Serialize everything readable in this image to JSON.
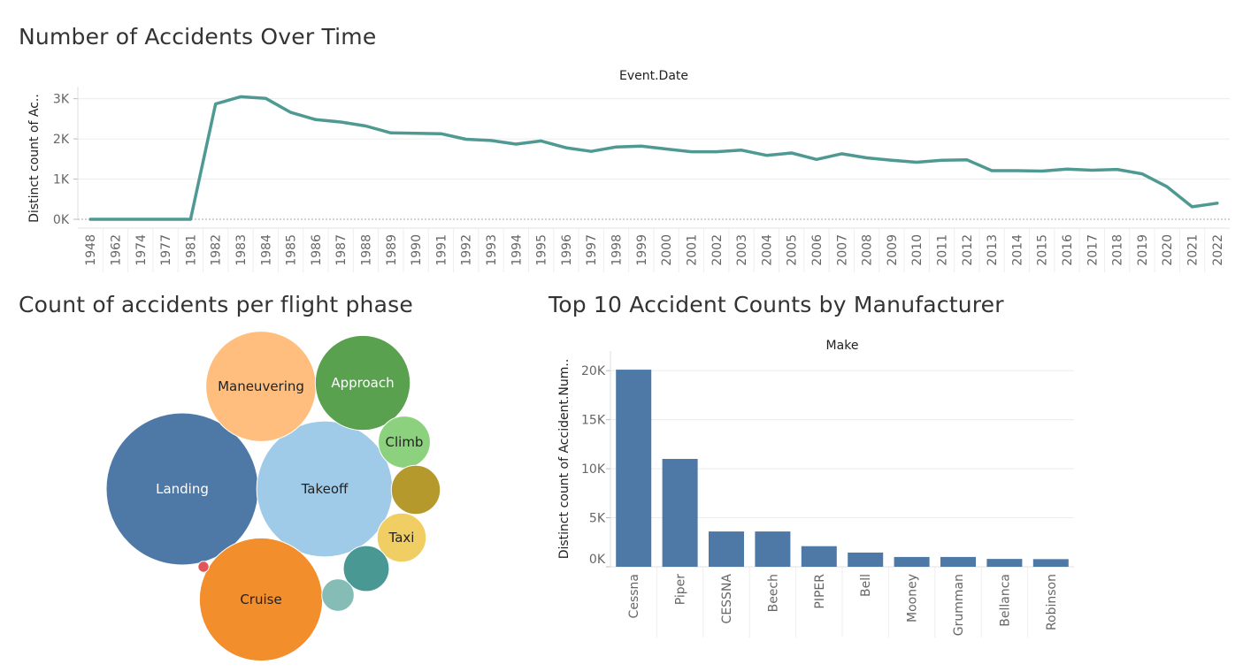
{
  "line_chart": {
    "title": "Number of Accidents Over Time",
    "chart_data": {
      "type": "line",
      "title": "Number of Accidents Over Time",
      "xlabel": "Event.Date",
      "ylabel": "Distinct count of Ac..",
      "ylim": [
        0,
        3300
      ],
      "y_ticks": [
        0,
        1000,
        2000,
        3000
      ],
      "y_tick_labels": [
        "0K",
        "1K",
        "2K",
        "3K"
      ],
      "grid": true,
      "color": "#4e9a93",
      "x": [
        "1948",
        "1962",
        "1974",
        "1977",
        "1981",
        "1982",
        "1983",
        "1984",
        "1985",
        "1986",
        "1987",
        "1988",
        "1989",
        "1990",
        "1991",
        "1992",
        "1993",
        "1994",
        "1995",
        "1996",
        "1997",
        "1998",
        "1999",
        "2000",
        "2001",
        "2002",
        "2003",
        "2004",
        "2005",
        "2006",
        "2007",
        "2008",
        "2009",
        "2010",
        "2011",
        "2012",
        "2013",
        "2014",
        "2015",
        "2016",
        "2017",
        "2018",
        "2019",
        "2020",
        "2021",
        "2022"
      ],
      "values": [
        1,
        1,
        1,
        1,
        1,
        2870,
        3050,
        3010,
        2660,
        2480,
        2420,
        2320,
        2150,
        2140,
        2130,
        1990,
        1960,
        1870,
        1950,
        1780,
        1690,
        1800,
        1820,
        1750,
        1680,
        1680,
        1720,
        1590,
        1650,
        1490,
        1630,
        1530,
        1470,
        1420,
        1470,
        1480,
        1210,
        1210,
        1200,
        1250,
        1220,
        1240,
        1130,
        810,
        310,
        400
      ]
    }
  },
  "bubble_chart": {
    "title": "Count of accidents per flight phase",
    "chart_data": {
      "type": "bubble",
      "title": "Count of accidents per flight phase",
      "bubbles": [
        {
          "label": "Landing",
          "value": 15400,
          "color": "#4e79a7",
          "text_color": "#ffffff"
        },
        {
          "label": "Takeoff",
          "value": 12300,
          "color": "#a0cbe8",
          "text_color": "#222222"
        },
        {
          "label": "Cruise",
          "value": 10100,
          "color": "#f28e2b",
          "text_color": "#222222"
        },
        {
          "label": "Maneuvering",
          "value": 8100,
          "color": "#ffbe7d",
          "text_color": "#222222"
        },
        {
          "label": "Approach",
          "value": 6000,
          "color": "#59a14f",
          "text_color": "#ffffff"
        },
        {
          "label": "Climb",
          "value": 1800,
          "color": "#8cd17d",
          "text_color": "#222222"
        },
        {
          "label": "",
          "value": 1600,
          "color": "#b6992d",
          "text_color": "#222222"
        },
        {
          "label": "Taxi",
          "value": 1600,
          "color": "#f1ce63",
          "text_color": "#222222"
        },
        {
          "label": "",
          "value": 1400,
          "color": "#499894",
          "text_color": "#222222"
        },
        {
          "label": "",
          "value": 700,
          "color": "#86bcb6",
          "text_color": "#222222"
        },
        {
          "label": "",
          "value": 80,
          "color": "#e15759",
          "text_color": "#222222"
        }
      ]
    }
  },
  "bar_chart": {
    "title": "Top 10 Accident Counts by Manufacturer",
    "chart_data": {
      "type": "bar",
      "title": "Top 10 Accident Counts by Manufacturer",
      "xlabel": "Make",
      "ylabel": "Distinct count of Accident.Num..",
      "ylim": [
        0,
        22000
      ],
      "y_ticks": [
        0,
        5000,
        10000,
        15000,
        20000
      ],
      "y_tick_labels": [
        "0K",
        "5K",
        "10K",
        "15K",
        "20K"
      ],
      "grid": true,
      "color": "#4e79a7",
      "categories": [
        "Cessna",
        "Piper",
        "CESSNA",
        "Beech",
        "PIPER",
        "Bell",
        "Mooney",
        "Grumman",
        "Bellanca",
        "Robinson"
      ],
      "values": [
        20100,
        11000,
        3600,
        3600,
        2100,
        1450,
        1000,
        1000,
        800,
        780
      ]
    }
  }
}
